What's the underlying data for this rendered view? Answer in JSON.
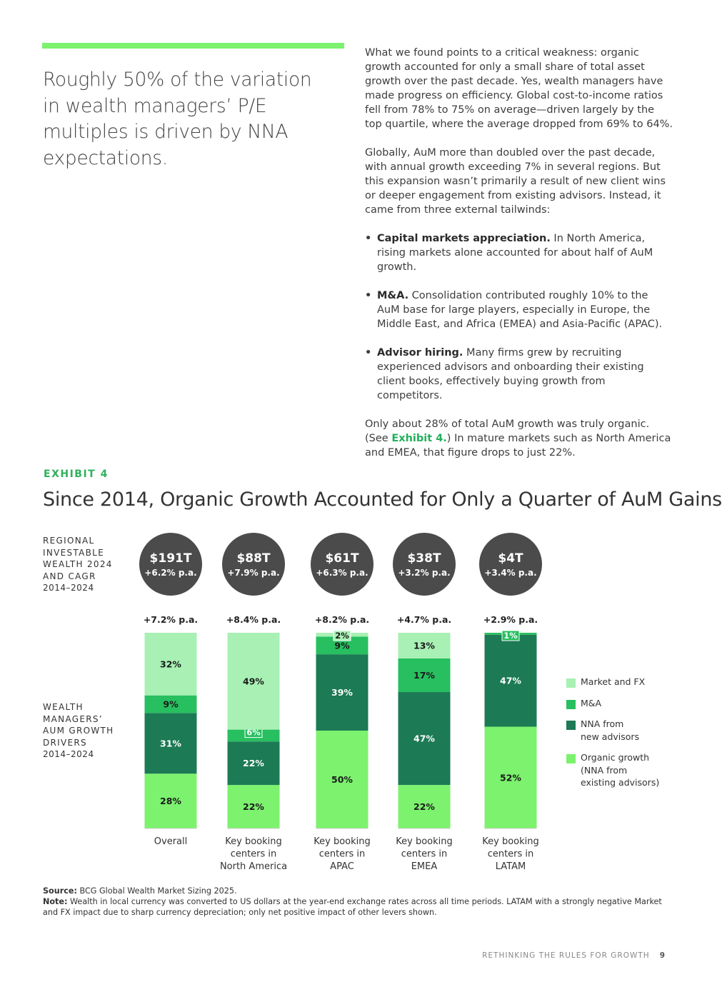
{
  "pull_quote": "Roughly 50% of the variation in wealth managers’ P/E multiples is driven by NNA expectations.",
  "body": {
    "p1": "What we found points to a critical weakness: organic growth accounted for only a small share of total asset growth over the past decade. Yes, wealth managers have made progress on efficiency. Global cost-to-income ratios fell from 78% to 75% on average—driven largely by the top quartile, where the average dropped from 69% to 64%.",
    "p2": "Globally, AuM more than doubled over the past decade, with annual growth exceeding 7% in several regions. But this expansion wasn’t primarily a result of new client wins or deeper engagement from existing advisors. Instead, it came from three external tailwinds:",
    "bullets": [
      {
        "title": "Capital markets appreciation.",
        "text": " In North America, rising markets alone accounted for about half of AuM growth."
      },
      {
        "title": "M&A.",
        "text": " Consolidation contributed roughly 10% to the AuM base for large players, especially in Europe, the Middle East, and Africa (EMEA) and Asia-Pacific (APAC)."
      },
      {
        "title": "Advisor hiring.",
        "text": " Many firms grew by recruiting experienced advisors and onboarding their existing client books, effectively buying growth from competitors."
      }
    ],
    "p3_a": "Only about 28% of total AuM growth was truly organic. (See ",
    "p3_link": "Exhibit 4.",
    "p3_b": ") In mature markets such as North America and EMEA, that figure drops to just 22%."
  },
  "exhibit": {
    "label": "EXHIBIT 4",
    "title": "Since 2014, Organic Growth Accounted for Only a Quarter of AuM Gains",
    "row1_label": "REGIONAL INVESTABLE WEALTH 2024 AND CAGR",
    "row1_years": "2014–2024",
    "row2_label": "WEALTH MANAGERS’ AUM GROWTH DRIVERS",
    "row2_years": "2014–2024"
  },
  "chart_data": {
    "type": "bar",
    "stacked": true,
    "categories": [
      "Overall",
      "Key booking centers in North America",
      "Key booking centers in APAC",
      "Key booking centers in EMEA",
      "Key booking centers in LATAM"
    ],
    "category_lines": [
      [
        "Overall"
      ],
      [
        "Key booking",
        "centers in",
        "North America"
      ],
      [
        "Key booking",
        "centers in",
        "APAC"
      ],
      [
        "Key booking",
        "centers in",
        "EMEA"
      ],
      [
        "Key booking",
        "centers in",
        "LATAM"
      ]
    ],
    "wealth_2024": [
      "$191T",
      "$88T",
      "$61T",
      "$38T",
      "$4T"
    ],
    "wealth_cagr": [
      "+6.2% p.a.",
      "+7.9% p.a.",
      "+6.3% p.a.",
      "+3.2% p.a.",
      "+3.4% p.a."
    ],
    "aum_cagr": [
      "+7.2% p.a.",
      "+8.4% p.a.",
      "+8.2% p.a.",
      "+4.7% p.a.",
      "+2.9% p.a."
    ],
    "series": [
      {
        "name": "Organic growth (NNA from existing advisors)",
        "values": [
          28,
          22,
          50,
          22,
          52
        ]
      },
      {
        "name": "NNA from new advisors",
        "values": [
          31,
          22,
          39,
          47,
          47
        ]
      },
      {
        "name": "M&A",
        "values": [
          9,
          6,
          9,
          17,
          1
        ]
      },
      {
        "name": "Market and FX",
        "values": [
          32,
          49,
          2,
          13,
          0
        ]
      }
    ],
    "ylim": [
      0,
      100
    ]
  },
  "legend": [
    {
      "lines": [
        "Market and FX"
      ],
      "color": "#a8f0b4"
    },
    {
      "lines": [
        "M&A"
      ],
      "color": "#27bf5f"
    },
    {
      "lines": [
        "NNA from",
        "new advisors"
      ],
      "color": "#1c7a55"
    },
    {
      "lines": [
        "Organic growth",
        "(NNA from",
        "existing advisors)"
      ],
      "color": "#7cf26e"
    }
  ],
  "colors": {
    "organic": "#7cf26e",
    "nna_new": "#1c7a55",
    "ma": "#27bf5f",
    "market": "#a8f0b4",
    "circle": "#4b4b4b",
    "accent": "#7cf26e"
  },
  "footnotes": {
    "source_label": "Source:",
    "source_text": " BCG Global Wealth Market Sizing 2025.",
    "note_label": "Note:",
    "note_text": " Wealth in local currency was converted to US dollars at the year-end exchange rates across all time periods. LATAM with a strongly negative Market and FX impact due to sharp currency depreciation; only net positive impact of other levers shown."
  },
  "footer": {
    "running_title": "RETHINKING THE RULES FOR GROWTH",
    "page_number": "9"
  }
}
